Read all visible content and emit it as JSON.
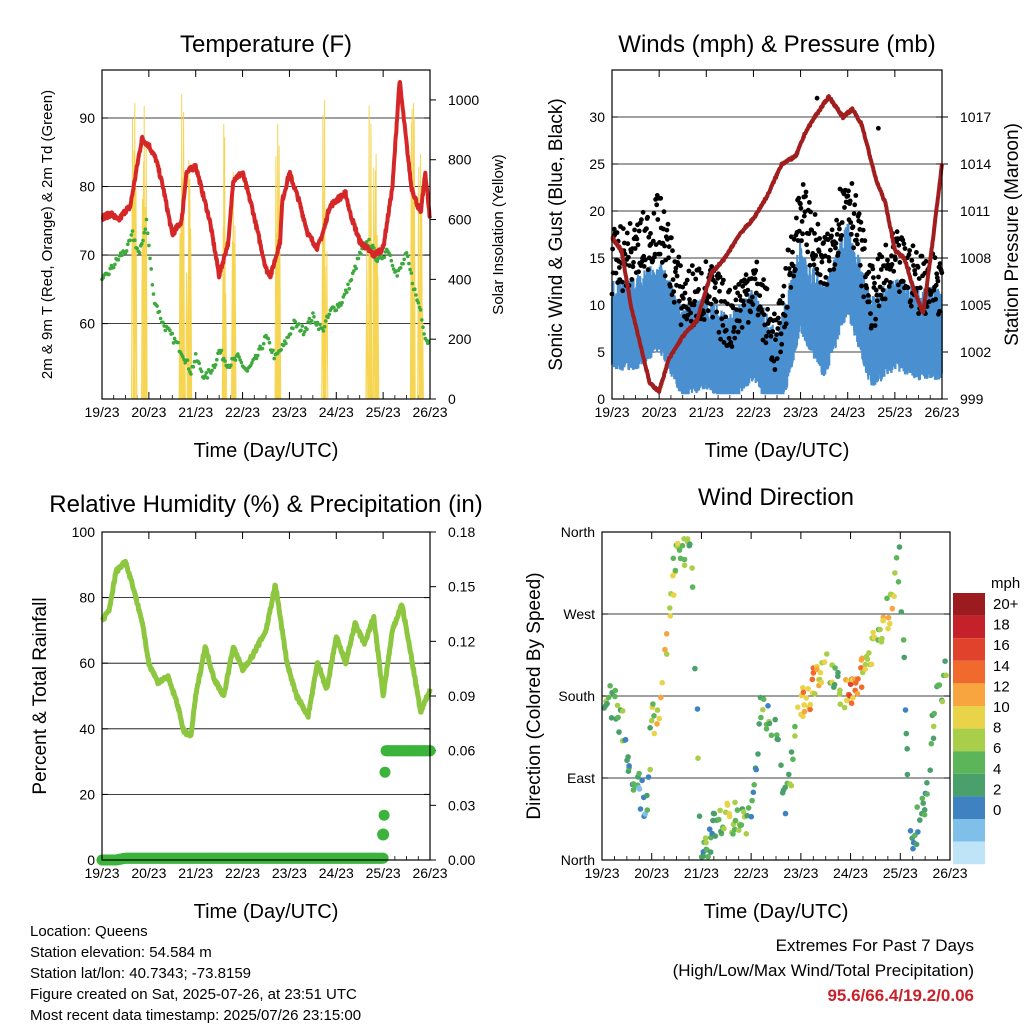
{
  "chart_data": [
    {
      "type": "line",
      "title": "Temperature (F)",
      "xlabel": "Time (Day/UTC)",
      "ylabel": "2m & 9m T (Red, Orange) & 2m Td (Green)",
      "ylabel_right": "Solar Insolation (Yellow)",
      "x_ticks": [
        "19/23",
        "20/23",
        "21/23",
        "22/23",
        "23/23",
        "24/23",
        "25/23",
        "26/23"
      ],
      "ylim": [
        49,
        97
      ],
      "y_ticks": [
        60,
        70,
        80,
        90
      ],
      "ylim_right": [
        0,
        1100
      ],
      "y_ticks_right": [
        0,
        200,
        400,
        600,
        800,
        1000
      ],
      "grid": "horizontal",
      "series": [
        {
          "name": "2m T",
          "color": "#d62728",
          "x": [
            0,
            0.2,
            0.35,
            0.5,
            0.6,
            0.75,
            0.85,
            1.0,
            1.15,
            1.3,
            1.5,
            1.7,
            1.8,
            2.0,
            2.3,
            2.5,
            2.7,
            2.8,
            3.0,
            3.2,
            3.5,
            3.6,
            3.8,
            3.85,
            4.0,
            4.2,
            4.4,
            4.6,
            4.75,
            4.85,
            5.0,
            5.2,
            5.3,
            5.5,
            5.8,
            6.0,
            6.2,
            6.35,
            6.6,
            6.8,
            6.9,
            7.0
          ],
          "y": [
            75.5,
            76,
            75,
            76.5,
            77,
            83,
            87,
            86,
            84,
            80,
            73,
            75,
            82,
            83,
            75,
            67,
            72,
            81,
            82,
            77,
            68,
            67,
            72,
            78,
            82,
            78,
            73,
            71,
            74,
            77,
            78,
            79,
            76,
            72,
            70,
            71,
            80,
            95.5,
            80,
            76,
            82,
            75
          ]
        },
        {
          "name": "2m Td",
          "color": "#3caa3c",
          "x": [
            0,
            0.2,
            0.4,
            0.55,
            0.65,
            0.8,
            0.95,
            1.1,
            1.3,
            1.5,
            1.7,
            1.9,
            2.0,
            2.2,
            2.4,
            2.5,
            2.7,
            2.9,
            3.1,
            3.3,
            3.5,
            3.7,
            3.9,
            4.1,
            4.3,
            4.5,
            4.7,
            4.9,
            5.1,
            5.3,
            5.5,
            5.7,
            5.9,
            6.1,
            6.3,
            6.5,
            6.7,
            6.8,
            6.9,
            7.0
          ],
          "y": [
            66,
            68,
            70,
            71,
            73,
            70,
            75,
            64,
            60,
            58,
            56,
            53,
            55,
            52,
            54,
            56,
            54,
            55,
            53,
            55,
            58,
            55,
            57,
            60,
            59,
            61,
            59,
            62,
            63,
            66,
            70,
            72,
            69,
            71,
            67,
            70,
            64,
            62,
            58,
            57
          ]
        },
        {
          "name": "Solar",
          "color": "#f5d34a",
          "axis": "right",
          "peaks": [
            {
              "x": 0.7,
              "y": 990
            },
            {
              "x": 0.9,
              "y": 980
            },
            {
              "x": 1.7,
              "y": 1020
            },
            {
              "x": 1.85,
              "y": 800
            },
            {
              "x": 2.6,
              "y": 920
            },
            {
              "x": 2.8,
              "y": 760
            },
            {
              "x": 3.75,
              "y": 920
            },
            {
              "x": 4.75,
              "y": 1000
            },
            {
              "x": 5.7,
              "y": 980
            },
            {
              "x": 5.85,
              "y": 820
            },
            {
              "x": 6.65,
              "y": 990
            },
            {
              "x": 6.8,
              "y": 820
            }
          ]
        }
      ]
    },
    {
      "type": "scatter",
      "title": "Winds (mph) & Pressure (mb)",
      "xlabel": "Time (Day/UTC)",
      "ylabel": "Sonic Wind & Gust (Blue, Black)",
      "ylabel_right": "Station Pressure (Maroon)",
      "x_ticks": [
        "19/23",
        "20/23",
        "21/23",
        "22/23",
        "23/23",
        "24/23",
        "25/23",
        "26/23"
      ],
      "ylim": [
        0,
        35
      ],
      "y_ticks": [
        0,
        5,
        10,
        15,
        20,
        25,
        30
      ],
      "ylim_right": [
        999,
        1020
      ],
      "y_ticks_right": [
        999,
        1002,
        1005,
        1008,
        1011,
        1014,
        1017
      ],
      "grid": "horizontal",
      "series": [
        {
          "name": "Gust",
          "color": "#000000",
          "x": [
            0,
            0.5,
            1,
            1.5,
            2,
            2.5,
            3,
            3.5,
            4,
            4.5,
            5,
            5.5,
            6,
            6.5,
            7
          ],
          "y": [
            14,
            15,
            18,
            10,
            11,
            8,
            12,
            5,
            20,
            13,
            22,
            10,
            14,
            12,
            12
          ]
        },
        {
          "name": "Wind",
          "color": "#4a90d0",
          "x": [
            0,
            0.5,
            1,
            1.5,
            2,
            2.5,
            3,
            3.5,
            4,
            4.5,
            5,
            5.5,
            6,
            6.5,
            7
          ],
          "y": [
            9,
            9,
            11,
            6,
            7,
            5,
            8,
            3,
            13,
            8,
            15,
            7,
            9,
            8,
            8
          ]
        },
        {
          "name": "Pressure",
          "color": "#a01e1e",
          "axis": "right",
          "x": [
            0,
            0.2,
            0.4,
            0.6,
            0.8,
            1.0,
            1.2,
            1.5,
            1.8,
            2.1,
            2.4,
            2.7,
            3.0,
            3.3,
            3.6,
            3.9,
            4.1,
            4.3,
            4.6,
            4.9,
            5.1,
            5.3,
            5.6,
            5.8,
            6.0,
            6.2,
            6.4,
            6.6,
            6.8,
            7.0
          ],
          "y": [
            1009.3,
            1008.5,
            1005,
            1002.5,
            1000,
            999.5,
            1001.5,
            1003,
            1004,
            1007,
            1008,
            1009.5,
            1010.5,
            1012,
            1014,
            1014.5,
            1016,
            1017,
            1018.3,
            1017,
            1017.5,
            1016.5,
            1013,
            1011.5,
            1008.5,
            1008,
            1006,
            1004.5,
            1009,
            1014
          ]
        }
      ]
    },
    {
      "type": "line",
      "title": "Relative Humidity (%) & Precipitation (in)",
      "xlabel": "Time (Day/UTC)",
      "ylabel": "Percent & Total Rainfall",
      "x_ticks": [
        "19/23",
        "20/23",
        "21/23",
        "22/23",
        "23/23",
        "24/23",
        "25/23",
        "26/23"
      ],
      "ylim": [
        0,
        100
      ],
      "y_ticks": [
        0,
        20,
        40,
        60,
        80,
        100
      ],
      "ylim_right": [
        0,
        0.18
      ],
      "y_ticks_right": [
        "0.00",
        "0.03",
        "0.06",
        "0.09",
        "0.12",
        "0.15",
        "0.18"
      ],
      "grid": "horizontal",
      "series": [
        {
          "name": "RH",
          "color": "#8dc63f",
          "x": [
            0,
            0.15,
            0.3,
            0.5,
            0.65,
            0.85,
            1.0,
            1.2,
            1.4,
            1.6,
            1.75,
            1.9,
            2.0,
            2.2,
            2.4,
            2.6,
            2.8,
            3.0,
            3.2,
            3.5,
            3.7,
            3.95,
            4.15,
            4.4,
            4.6,
            4.8,
            5.0,
            5.2,
            5.4,
            5.6,
            5.8,
            6.0,
            6.2,
            6.4,
            6.6,
            6.8,
            7.0
          ],
          "y": [
            73,
            76,
            88,
            91,
            84,
            73,
            60,
            54,
            56,
            48,
            39,
            38,
            50,
            65,
            55,
            50,
            65,
            58,
            62,
            70,
            84,
            60,
            50,
            44,
            60,
            52,
            68,
            60,
            72,
            66,
            74,
            50,
            70,
            78,
            62,
            45,
            52
          ]
        },
        {
          "name": "Precipitation",
          "color": "#3cb43c",
          "axis": "right",
          "x": [
            0,
            0.3,
            0.5,
            6.0,
            6.05,
            7.0
          ],
          "y": [
            0,
            0,
            0.001,
            0.001,
            0.06,
            0.06
          ],
          "outlier": {
            "x": 6.0,
            "y": 0.014
          }
        }
      ]
    },
    {
      "type": "scatter",
      "title": "Wind Direction",
      "xlabel": "Time (Day/UTC)",
      "ylabel": "Direction (Colored By Speed)",
      "x_ticks": [
        "19/23",
        "20/23",
        "21/23",
        "22/23",
        "23/23",
        "24/23",
        "25/23",
        "26/23"
      ],
      "ylim": [
        0,
        360
      ],
      "y_tick_values": [
        0,
        90,
        180,
        270,
        360
      ],
      "y_ticks": [
        "North",
        "East",
        "South",
        "West",
        "North"
      ],
      "grid": "horizontal",
      "legend": {
        "title": "mph",
        "position": "right",
        "labels": [
          "20+",
          "18",
          "16",
          "14",
          "12",
          "10",
          "8",
          "6",
          "4",
          "2",
          "0"
        ],
        "colors": [
          "#9c1b1f",
          "#c5212a",
          "#e0422c",
          "#f06a2e",
          "#f9a53f",
          "#e9d348",
          "#a9cf4a",
          "#5db55a",
          "#4aa06a",
          "#3f82c2",
          "#7fbfea",
          "#bfe4f7"
        ]
      },
      "series": [
        {
          "name": "direction",
          "x": [
            0.1,
            0.3,
            0.6,
            0.9,
            1.0,
            1.2,
            1.5,
            1.8,
            2.0,
            2.3,
            2.6,
            3.0,
            3.2,
            3.5,
            3.7,
            4.0,
            4.2,
            4.5,
            4.8,
            5.0,
            5.3,
            5.6,
            5.8,
            6.0,
            6.2,
            6.5,
            6.7,
            6.9
          ],
          "y": [
            180,
            170,
            100,
            60,
            150,
            180,
            345,
            335,
            10,
            40,
            45,
            50,
            170,
            140,
            60,
            175,
            185,
            220,
            190,
            180,
            210,
            250,
            280,
            330,
            20,
            60,
            170,
            200
          ],
          "speed": [
            8,
            8,
            6,
            4,
            10,
            14,
            10,
            8,
            6,
            8,
            10,
            6,
            8,
            6,
            4,
            14,
            14,
            10,
            8,
            16,
            12,
            10,
            12,
            8,
            6,
            6,
            8,
            8
          ]
        }
      ]
    }
  ],
  "info": {
    "location": "Location: Queens",
    "elevation": "Station elevation: 54.584 m",
    "latlon": "Station lat/lon: 40.7343; -73.8159",
    "created": "Figure created on Sat, 2025-07-26, at 23:51 UTC",
    "recent": "Most recent data timestamp: 2025/07/26 23:15:00"
  },
  "extremes": {
    "line1": "Extremes For Past 7 Days",
    "line2": "(High/Low/Max Wind/Total Precipitation)",
    "value": "95.6/66.4/19.2/0.06"
  }
}
